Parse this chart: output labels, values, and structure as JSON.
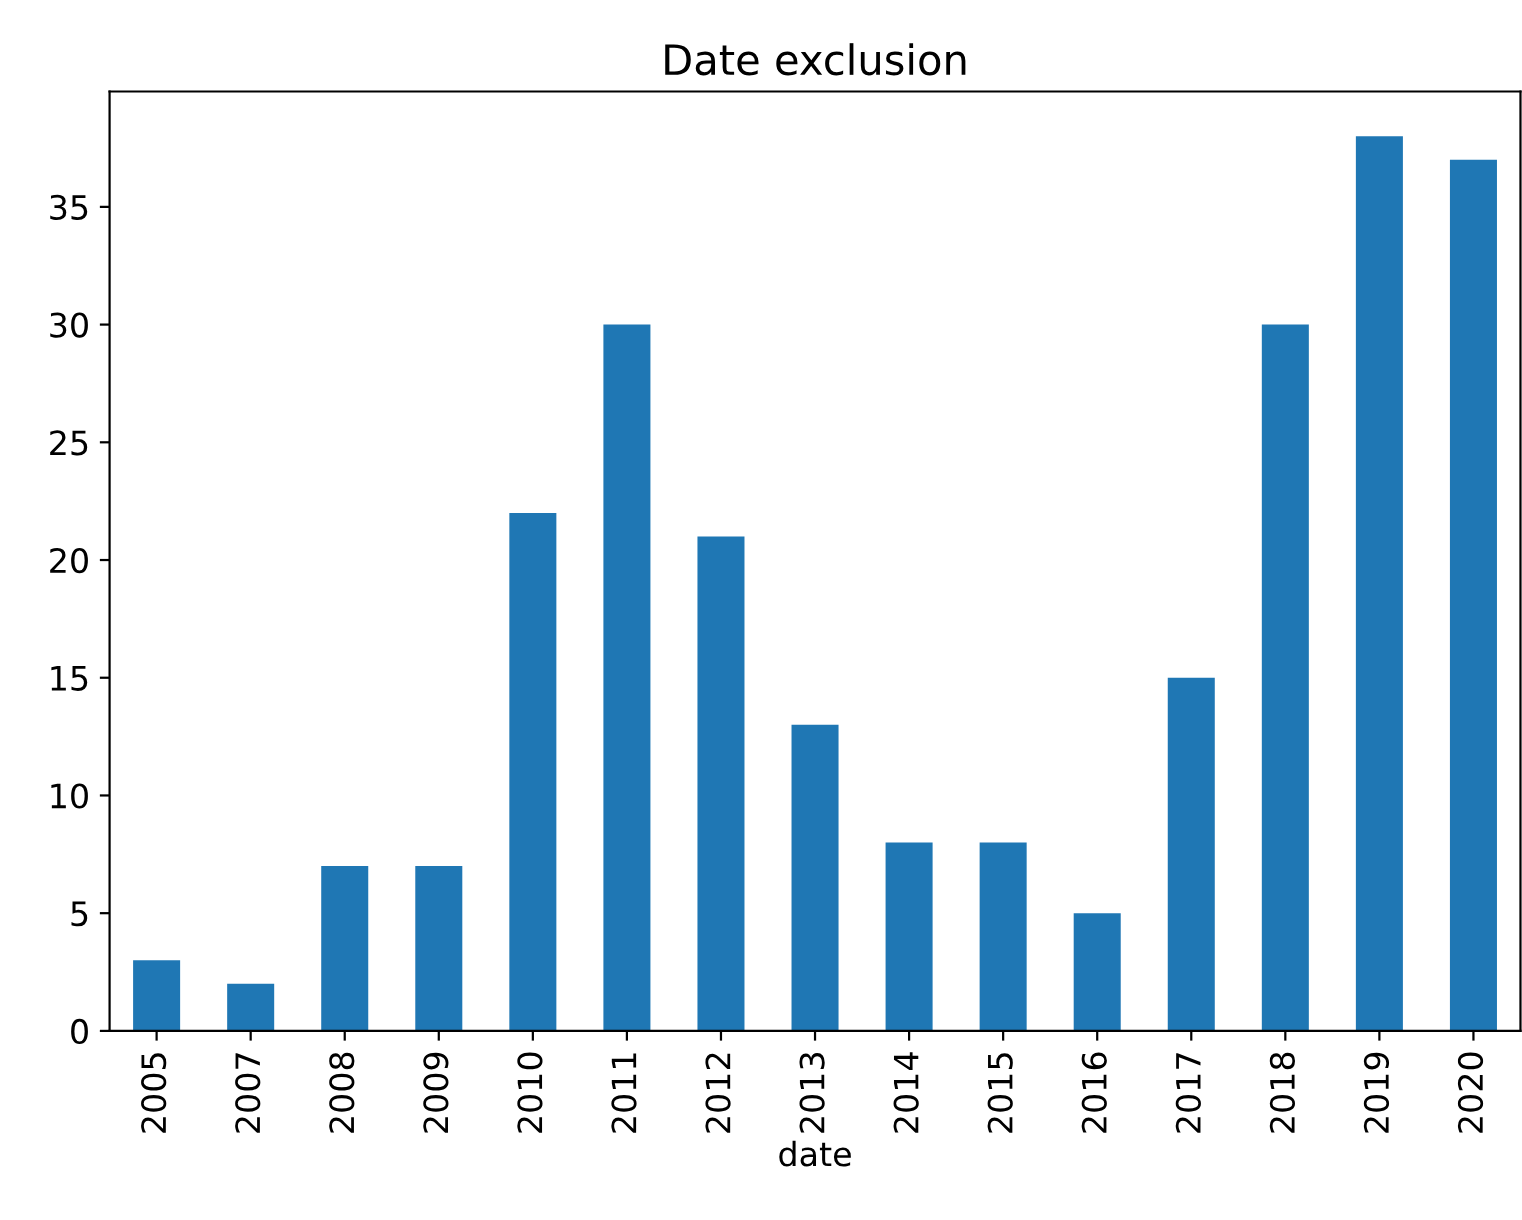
{
  "chart_data": {
    "type": "bar",
    "title": "Date exclusion",
    "xlabel": "date",
    "categories": [
      "2005",
      "2007",
      "2008",
      "2009",
      "2010",
      "2011",
      "2012",
      "2013",
      "2014",
      "2015",
      "2016",
      "2017",
      "2018",
      "2019",
      "2020"
    ],
    "values": [
      3,
      2,
      7,
      7,
      22,
      30,
      21,
      13,
      8,
      8,
      5,
      15,
      30,
      38,
      37
    ],
    "color": "#1f77b4",
    "ylim": [
      0,
      39.9
    ],
    "yticks": [
      0,
      5,
      10,
      15,
      20,
      25,
      30,
      35
    ],
    "grid": false
  }
}
